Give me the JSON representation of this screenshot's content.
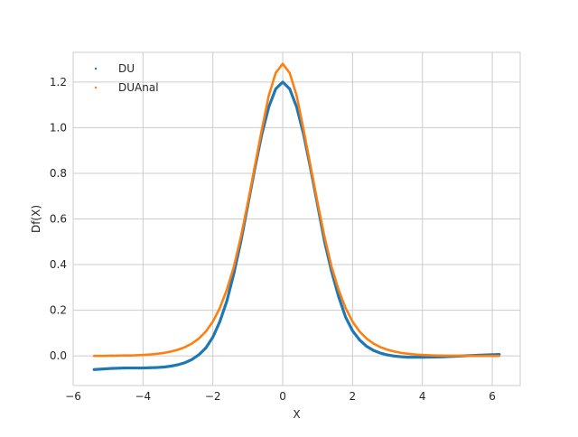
{
  "chart_data": {
    "type": "scatter",
    "xlabel": "X",
    "ylabel": "Df(X)",
    "xlim": [
      -6,
      6.8
    ],
    "ylim": [
      -0.13,
      1.33
    ],
    "xticks": [
      -6,
      -4,
      -2,
      0,
      2,
      4,
      6
    ],
    "yticks": [
      0.0,
      0.2,
      0.4,
      0.6,
      0.8,
      1.0,
      1.2
    ],
    "xtick_labels": [
      "−6",
      "−4",
      "−2",
      "0",
      "2",
      "4",
      "6"
    ],
    "ytick_labels": [
      "0.0",
      "0.2",
      "0.4",
      "0.6",
      "0.8",
      "1.0",
      "1.2"
    ],
    "grid": true,
    "legend_position": "top-left",
    "series": [
      {
        "name": "DU",
        "color": "#1f77b4",
        "x": [
          -5.4,
          -5.1,
          -4.9,
          -4.7,
          -4.5,
          -4.3,
          -4.0,
          -3.8,
          -3.6,
          -3.4,
          -3.2,
          -3.0,
          -2.8,
          -2.6,
          -2.4,
          -2.2,
          -2.0,
          -1.8,
          -1.6,
          -1.4,
          -1.2,
          -1.0,
          -0.8,
          -0.6,
          -0.4,
          -0.2,
          0.0,
          0.2,
          0.4,
          0.6,
          0.8,
          1.0,
          1.2,
          1.4,
          1.6,
          1.8,
          2.0,
          2.2,
          2.4,
          2.6,
          2.8,
          3.0,
          3.2,
          3.4,
          3.6,
          3.8,
          4.0,
          4.3,
          4.6,
          4.9,
          5.2,
          5.5,
          5.8,
          6.2
        ],
        "y": [
          -0.06,
          -0.057,
          -0.055,
          -0.054,
          -0.053,
          -0.053,
          -0.053,
          -0.052,
          -0.051,
          -0.049,
          -0.045,
          -0.039,
          -0.03,
          -0.016,
          0.005,
          0.035,
          0.082,
          0.15,
          0.24,
          0.36,
          0.5,
          0.66,
          0.82,
          0.97,
          1.09,
          1.17,
          1.2,
          1.17,
          1.09,
          0.97,
          0.82,
          0.66,
          0.5,
          0.37,
          0.26,
          0.17,
          0.11,
          0.07,
          0.042,
          0.024,
          0.012,
          0.004,
          -0.001,
          -0.004,
          -0.006,
          -0.006,
          -0.006,
          -0.005,
          -0.004,
          -0.002,
          0.0,
          0.002,
          0.004,
          0.006
        ]
      },
      {
        "name": "DUAnal",
        "color": "#ff7f0e",
        "x": [
          -5.4,
          -5.1,
          -4.9,
          -4.7,
          -4.5,
          -4.3,
          -4.0,
          -3.8,
          -3.6,
          -3.4,
          -3.2,
          -3.0,
          -2.8,
          -2.6,
          -2.4,
          -2.2,
          -2.0,
          -1.8,
          -1.6,
          -1.4,
          -1.2,
          -1.0,
          -0.8,
          -0.6,
          -0.4,
          -0.2,
          0.0,
          0.2,
          0.4,
          0.6,
          0.8,
          1.0,
          1.2,
          1.4,
          1.6,
          1.8,
          2.0,
          2.2,
          2.4,
          2.6,
          2.8,
          3.0,
          3.2,
          3.4,
          3.6,
          3.8,
          4.0,
          4.3,
          4.6,
          4.9,
          5.2,
          5.5,
          5.8,
          6.2
        ],
        "y": [
          0.0,
          0.0,
          0.001,
          0.001,
          0.002,
          0.002,
          0.004,
          0.006,
          0.009,
          0.013,
          0.019,
          0.027,
          0.038,
          0.054,
          0.076,
          0.107,
          0.15,
          0.21,
          0.29,
          0.39,
          0.52,
          0.67,
          0.83,
          0.99,
          1.14,
          1.24,
          1.28,
          1.24,
          1.14,
          0.99,
          0.83,
          0.67,
          0.52,
          0.39,
          0.29,
          0.21,
          0.15,
          0.107,
          0.076,
          0.054,
          0.038,
          0.027,
          0.019,
          0.013,
          0.009,
          0.006,
          0.004,
          0.002,
          0.001,
          0.001,
          0.0,
          0.0,
          0.0,
          0.0
        ]
      }
    ]
  }
}
